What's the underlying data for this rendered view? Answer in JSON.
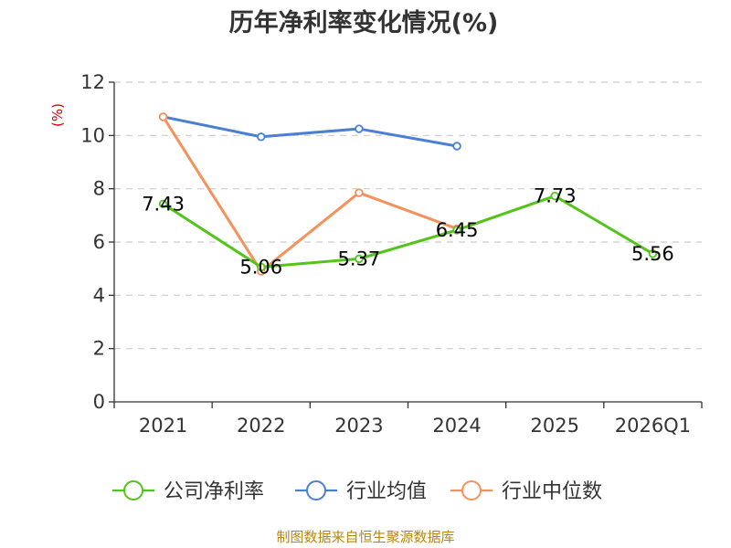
{
  "chart_data": {
    "type": "line",
    "title": "历年净利率变化情况(%)",
    "ylabel": "(%)",
    "xlabel": "",
    "categories": [
      "2021",
      "2022",
      "2023",
      "2024",
      "2025",
      "2026Q1"
    ],
    "ylim": [
      0,
      12
    ],
    "yticks": [
      0,
      2,
      4,
      6,
      8,
      10,
      12
    ],
    "grid": true,
    "legend_position": "bottom",
    "series": [
      {
        "name": "公司净利率",
        "color": "#52c41a",
        "values": [
          7.43,
          5.06,
          5.37,
          6.45,
          7.73,
          5.56
        ],
        "show_labels": true
      },
      {
        "name": "行业均值",
        "color": "#4a7fd4",
        "values": [
          10.7,
          9.95,
          10.25,
          9.6,
          null,
          null
        ],
        "show_labels": false
      },
      {
        "name": "行业中位数",
        "color": "#f4925a",
        "values": [
          10.7,
          4.9,
          7.85,
          6.5,
          null,
          null
        ],
        "show_labels": false
      }
    ]
  },
  "source_text": "制图数据来自恒生聚源数据库"
}
